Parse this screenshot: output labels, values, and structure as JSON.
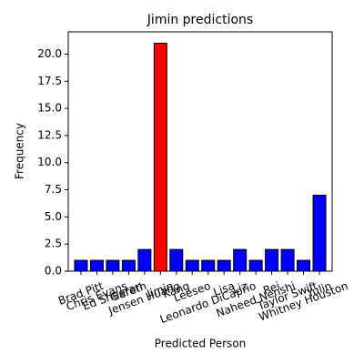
{
  "chart_data": {
    "type": "bar",
    "title": "Jimin predictions",
    "xlabel": "Predicted Person",
    "ylabel": "Frequency",
    "categories": [
      "Brad Pitt",
      "Chris Evans",
      "Ed Sheeran",
      "Gareth",
      "Jensen Huang",
      "Jimin",
      "Kang",
      "Leeseo",
      "Leonardo DiCaprio",
      "Lisa",
      "Liz",
      "Naheed Nenshi",
      "Rei",
      "Taylor Swift",
      "Whitney Houston",
      "Yulin"
    ],
    "values": [
      1,
      1,
      1,
      1,
      2,
      21,
      2,
      1,
      1,
      1,
      2,
      1,
      2,
      2,
      1,
      7
    ],
    "colors": [
      "#0000ff",
      "#0000ff",
      "#0000ff",
      "#0000ff",
      "#0000ff",
      "#ff0000",
      "#0000ff",
      "#0000ff",
      "#0000ff",
      "#0000ff",
      "#0000ff",
      "#0000ff",
      "#0000ff",
      "#0000ff",
      "#0000ff",
      "#0000ff"
    ],
    "ylim": [
      0,
      22.05
    ],
    "yticks": [
      {
        "value": 0,
        "label": "0.0"
      },
      {
        "value": 2.5,
        "label": "2.5"
      },
      {
        "value": 5,
        "label": "5.0"
      },
      {
        "value": 7.5,
        "label": "7.5"
      },
      {
        "value": 10,
        "label": "10.0"
      },
      {
        "value": 12.5,
        "label": "12.5"
      },
      {
        "value": 15,
        "label": "15.0"
      },
      {
        "value": 17.5,
        "label": "17.5"
      },
      {
        "value": 20,
        "label": "20.0"
      }
    ],
    "grid": false
  }
}
